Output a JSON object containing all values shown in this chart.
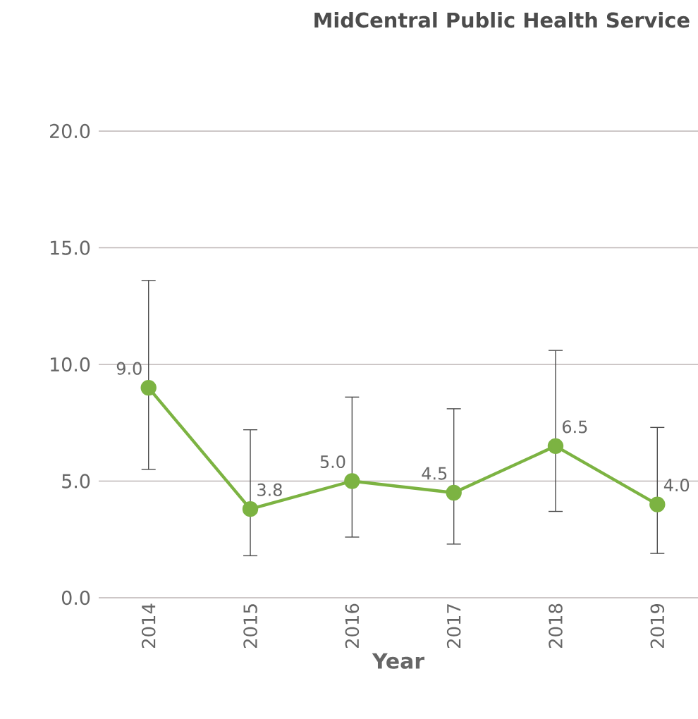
{
  "chart_data": {
    "type": "line",
    "title": "MidCentral Public Health Service",
    "xlabel": "Year",
    "categories": [
      "2014",
      "2015",
      "2016",
      "2017",
      "2018",
      "2019"
    ],
    "series": [
      {
        "color": "#7cb342",
        "values": [
          9.0,
          3.8,
          5.0,
          4.5,
          6.5,
          4.0
        ],
        "errors": [
          [
            5.5,
            13.6
          ],
          [
            1.8,
            7.2
          ],
          [
            2.6,
            8.6
          ],
          [
            2.3,
            8.1
          ],
          [
            3.7,
            10.6
          ],
          [
            1.9,
            7.3
          ]
        ],
        "value_labels": [
          "9.0",
          "3.8",
          "5.0",
          "4.5",
          "6.5",
          "4.0"
        ]
      }
    ],
    "ylim": [
      0,
      20
    ],
    "yticks": [
      {
        "value": 0,
        "label": "0.0"
      },
      {
        "value": 5,
        "label": "5.0"
      },
      {
        "value": 10,
        "label": "10.0"
      },
      {
        "value": 15,
        "label": "15.0"
      },
      {
        "value": 20,
        "label": "20.0"
      }
    ],
    "grid": "y",
    "marker": "circle",
    "line_style": "solid"
  }
}
